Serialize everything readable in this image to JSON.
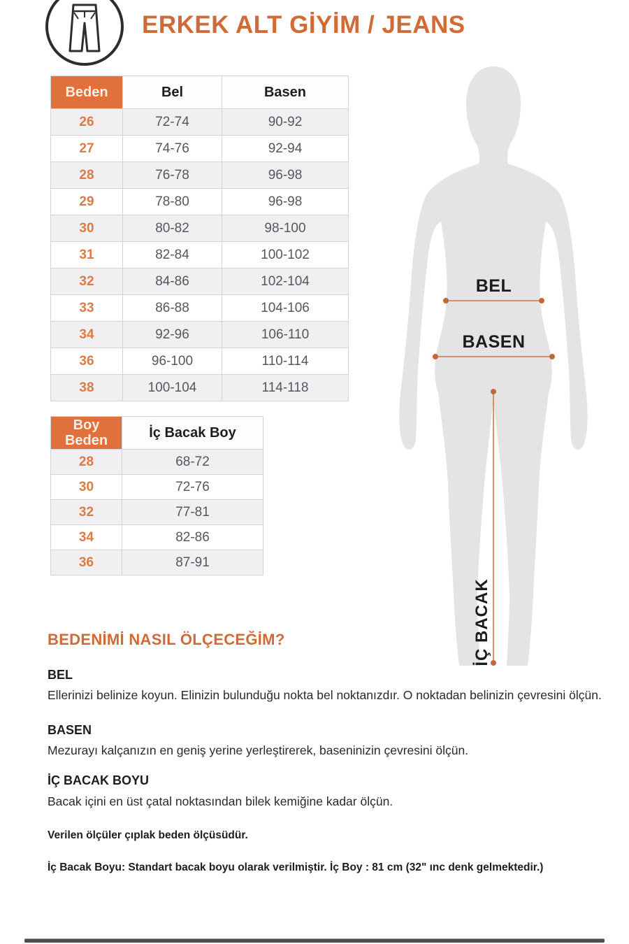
{
  "header": {
    "title": "ERKEK ALT GİYİM / JEANS",
    "icon": "jeans-icon"
  },
  "colors": {
    "accent_orange": "#d06a36",
    "table_header_bg": "#e0703c",
    "table_header_text": "#f8efe3",
    "size_number_text": "#dd7b45",
    "alt_row_bg": "#f1eff2",
    "cell_text": "#56575b",
    "silhouette_gray": "#e4e4e4",
    "measure_line": "#d8906a",
    "measure_dot": "#c2693c",
    "bottom_bar": "#4d4d4d"
  },
  "size_table": {
    "headers": [
      "Beden",
      "Bel",
      "Basen"
    ],
    "rows": [
      [
        "26",
        "72-74",
        "90-92"
      ],
      [
        "27",
        "74-76",
        "92-94"
      ],
      [
        "28",
        "76-78",
        "96-98"
      ],
      [
        "29",
        "78-80",
        "96-98"
      ],
      [
        "30",
        "80-82",
        "98-100"
      ],
      [
        "31",
        "82-84",
        "100-102"
      ],
      [
        "32",
        "84-86",
        "102-104"
      ],
      [
        "33",
        "86-88",
        "104-106"
      ],
      [
        "34",
        "92-96",
        "106-110"
      ],
      [
        "36",
        "96-100",
        "110-114"
      ],
      [
        "38",
        "100-104",
        "114-118"
      ]
    ]
  },
  "length_table": {
    "headers": [
      "Boy Beden",
      "İç Bacak Boy"
    ],
    "rows": [
      [
        "28",
        "68-72"
      ],
      [
        "30",
        "72-76"
      ],
      [
        "32",
        "77-81"
      ],
      [
        "34",
        "82-86"
      ],
      [
        "36",
        "87-91"
      ]
    ]
  },
  "figure": {
    "bel_label": "BEL",
    "basen_label": "BASEN",
    "ic_bacak_label": "İÇ BACAK"
  },
  "how_to": {
    "heading": "BEDENİMİ NASIL ÖLÇECEĞİM?",
    "sections": [
      {
        "title": "BEL",
        "text": "Ellerinizi belinize koyun. Elinizin bulunduğu nokta bel noktanızdır. O noktadan belinizin çevresini ölçün."
      },
      {
        "title": "BASEN",
        "text": "Mezurayı kalçanızın en geniş yerine yerleştirerek, baseninizin çevresini ölçün."
      },
      {
        "title": "İÇ BACAK BOYU",
        "text": "Bacak içini en üst çatal noktasından bilek kemiğine kadar ölçün."
      }
    ],
    "notes": [
      "Verilen ölçüler çıplak beden ölçüsüdür.",
      "İç Bacak Boyu: Standart bacak boyu olarak verilmiştir. İç Boy : 81 cm (32\" ınc denk gelmektedir.)"
    ]
  }
}
